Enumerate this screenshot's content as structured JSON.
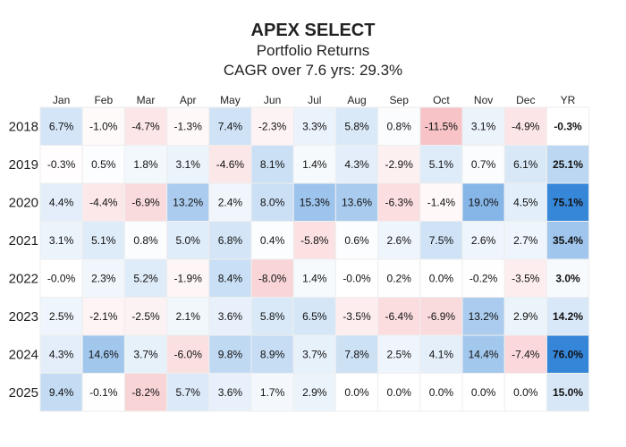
{
  "chart_data": {
    "type": "heatmap",
    "title": "APEX SELECT",
    "subtitle": "Portfolio Returns",
    "subtitle2": "CAGR over 7.6 yrs: 29.3%",
    "columns": [
      "Jan",
      "Feb",
      "Mar",
      "Apr",
      "May",
      "Jun",
      "Jul",
      "Aug",
      "Sep",
      "Oct",
      "Nov",
      "Dec",
      "YR"
    ],
    "rows": [
      "2018",
      "2019",
      "2020",
      "2021",
      "2022",
      "2023",
      "2024",
      "2025"
    ],
    "values": [
      [
        "6.7%",
        "-1.0%",
        "-4.7%",
        "-1.3%",
        "7.4%",
        "-2.3%",
        "3.3%",
        "5.8%",
        "0.8%",
        "-11.5%",
        "3.1%",
        "-4.9%",
        "-0.3%"
      ],
      [
        "-0.3%",
        "0.5%",
        "1.8%",
        "3.1%",
        "-4.6%",
        "8.1%",
        "1.4%",
        "4.3%",
        "-2.9%",
        "5.1%",
        "0.7%",
        "6.1%",
        "25.1%"
      ],
      [
        "4.4%",
        "-4.4%",
        "-6.9%",
        "13.2%",
        "2.4%",
        "8.0%",
        "15.3%",
        "13.6%",
        "-6.3%",
        "-1.4%",
        "19.0%",
        "4.5%",
        "75.1%"
      ],
      [
        "3.1%",
        "5.1%",
        "0.8%",
        "5.0%",
        "6.8%",
        "0.4%",
        "-5.8%",
        "0.6%",
        "2.6%",
        "7.5%",
        "2.6%",
        "2.7%",
        "35.4%"
      ],
      [
        "-0.0%",
        "2.3%",
        "5.2%",
        "-1.9%",
        "8.4%",
        "-8.0%",
        "1.4%",
        "-0.0%",
        "0.2%",
        "0.0%",
        "-0.2%",
        "-3.5%",
        "3.0%"
      ],
      [
        "2.5%",
        "-2.1%",
        "-2.5%",
        "2.1%",
        "3.6%",
        "5.8%",
        "6.5%",
        "-3.5%",
        "-6.4%",
        "-6.9%",
        "13.2%",
        "2.9%",
        "14.2%"
      ],
      [
        "4.3%",
        "14.6%",
        "3.7%",
        "-6.0%",
        "9.8%",
        "8.9%",
        "3.7%",
        "7.8%",
        "2.5%",
        "4.1%",
        "14.4%",
        "-7.4%",
        "76.0%"
      ],
      [
        "9.4%",
        "-0.1%",
        "-8.2%",
        "5.7%",
        "3.6%",
        "1.7%",
        "2.9%",
        "0.0%",
        "0.0%",
        "0.0%",
        "0.0%",
        "0.0%",
        "15.0%"
      ]
    ],
    "color_scale": {
      "positive": "#2a7fd6",
      "negative": "#e8505b",
      "neutral": "#ffffff"
    },
    "grid": true
  }
}
